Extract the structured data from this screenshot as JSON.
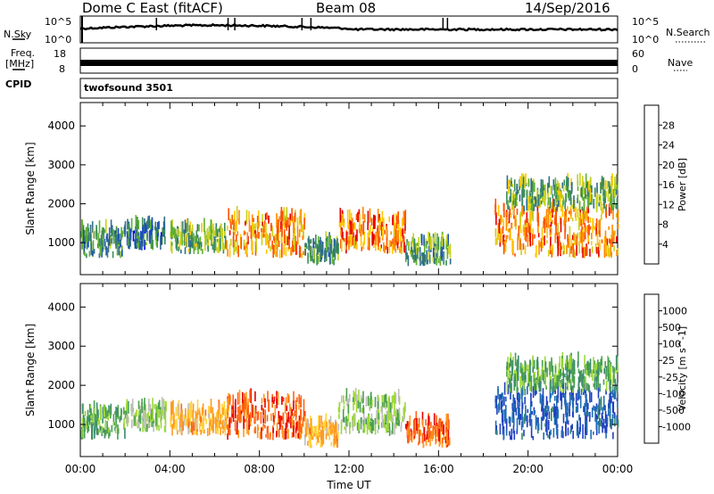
{
  "header": {
    "station": "Dome C East (fitACF)",
    "beam": "Beam 08",
    "date": "14/Sep/2016"
  },
  "top_panels": {
    "nsky_label": "N.Sky",
    "nsky_ticks": [
      "10^5",
      "10^0"
    ],
    "nsearch_label": "N.Search",
    "nsearch_ticks": [
      "10^5",
      "10^0"
    ],
    "freq_label": "Freq.",
    "freq_unit": "[MHz]",
    "freq_ticks": [
      "18",
      "8"
    ],
    "nave_label": "Nave",
    "nave_ticks": [
      "60",
      "0"
    ],
    "cpid_label": "CPID",
    "cpid_value": "twofsound 3501"
  },
  "power_panel": {
    "ylabel": "Slant Range [km]",
    "yticks": [
      "4000",
      "3000",
      "2000",
      "1000"
    ],
    "colorbar_label": "Power [dB]",
    "colorbar_ticks": [
      "28",
      "24",
      "20",
      "16",
      "12",
      "8",
      "4"
    ],
    "colors": [
      "#0000ff",
      "#1a4fb8",
      "#2f6e8c",
      "#3a8a5a",
      "#5fb030",
      "#c8d21e",
      "#ffc800",
      "#ff8a00",
      "#ff5000",
      "#e60000"
    ]
  },
  "velocity_panel": {
    "ylabel": "Slant Range [km]",
    "yticks": [
      "4000",
      "3000",
      "2000",
      "1000"
    ],
    "colorbar_label": "Velocity [m s^-1]",
    "colorbar_ticks": [
      "1000",
      "500",
      "100",
      "25",
      "-25",
      "-100",
      "-500",
      "-1000"
    ],
    "colors": [
      "#2040c0",
      "#1e6eb4",
      "#3a8a6e",
      "#4aa050",
      "#9ed83a",
      "#bebebe",
      "#ffd23c",
      "#ff9a1e",
      "#ff6414",
      "#e60000"
    ]
  },
  "x_axis": {
    "ticks": [
      "00:00",
      "04:00",
      "08:00",
      "12:00",
      "16:00",
      "20:00",
      "00:00"
    ],
    "label": "Time UT"
  },
  "chart_data": [
    {
      "type": "heatmap",
      "title": "Power",
      "xlabel": "Time UT",
      "ylabel": "Slant Range [km]",
      "xlim_hours": [
        0,
        24
      ],
      "ylim": [
        180,
        4600
      ],
      "colorbar_range_db": [
        0,
        32
      ],
      "scatter_regions": [
        {
          "t": [
            0.0,
            2.0
          ],
          "range": [
            600,
            1300
          ],
          "level": 10
        },
        {
          "t": [
            2.0,
            3.8
          ],
          "range": [
            800,
            1400
          ],
          "level": 8
        },
        {
          "t": [
            4.0,
            6.5
          ],
          "range": [
            700,
            1300
          ],
          "level": 14
        },
        {
          "t": [
            6.5,
            10.0
          ],
          "range": [
            600,
            1600
          ],
          "level": 24
        },
        {
          "t": [
            10.0,
            11.5
          ],
          "range": [
            400,
            1000
          ],
          "level": 10
        },
        {
          "t": [
            11.5,
            14.5
          ],
          "range": [
            700,
            1600
          ],
          "level": 26
        },
        {
          "t": [
            14.5,
            16.5
          ],
          "range": [
            400,
            1000
          ],
          "level": 12
        },
        {
          "t": [
            18.5,
            24.0
          ],
          "range": [
            600,
            1800
          ],
          "level": 25
        },
        {
          "t": [
            19.0,
            24.0
          ],
          "range": [
            1800,
            2500
          ],
          "level": 14
        }
      ]
    },
    {
      "type": "heatmap",
      "title": "Velocity",
      "xlabel": "Time UT",
      "ylabel": "Slant Range [km]",
      "xlim_hours": [
        0,
        24
      ],
      "ylim": [
        180,
        4600
      ],
      "colorbar_range": [
        -1000,
        1000
      ],
      "scatter_regions": [
        {
          "t": [
            0.0,
            2.0
          ],
          "range": [
            600,
            1300
          ],
          "velocity": 100
        },
        {
          "t": [
            2.0,
            3.8
          ],
          "range": [
            800,
            1400
          ],
          "velocity": 25
        },
        {
          "t": [
            4.0,
            6.5
          ],
          "range": [
            700,
            1300
          ],
          "velocity": -100
        },
        {
          "t": [
            6.5,
            10.0
          ],
          "range": [
            600,
            1600
          ],
          "velocity": -300
        },
        {
          "t": [
            10.0,
            11.5
          ],
          "range": [
            400,
            1000
          ],
          "velocity": -100
        },
        {
          "t": [
            11.5,
            14.5
          ],
          "range": [
            700,
            1600
          ],
          "velocity": 50
        },
        {
          "t": [
            14.5,
            16.5
          ],
          "range": [
            400,
            1000
          ],
          "velocity": -200
        },
        {
          "t": [
            18.5,
            24.0
          ],
          "range": [
            600,
            1800
          ],
          "velocity": 700
        },
        {
          "t": [
            19.0,
            24.0
          ],
          "range": [
            1800,
            2500
          ],
          "velocity": 100
        }
      ]
    }
  ]
}
